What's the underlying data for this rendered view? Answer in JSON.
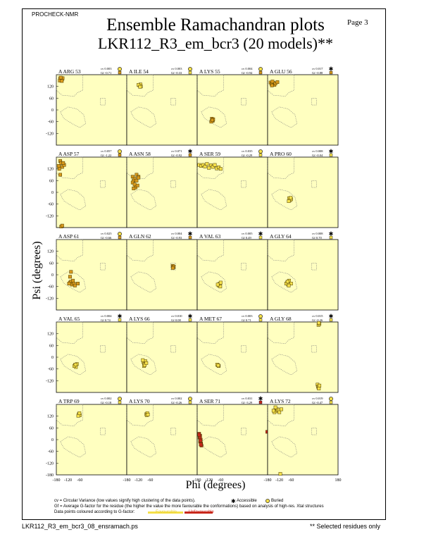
{
  "header": {
    "program": "PROCHECK-NMR",
    "page": "Page  3"
  },
  "title": {
    "line1": "Ensemble Ramachandran plots",
    "line2": "LKR112_R3_em_bcr3 (20 models)**"
  },
  "axes": {
    "xlabel": "Phi (degrees)",
    "ylabel": "Psi (degrees)",
    "yticks": [
      "120",
      "60",
      "0",
      "-60",
      "-120"
    ],
    "xticks": [
      "-180",
      "-120",
      "-60",
      "0",
      "60",
      "120",
      "180"
    ],
    "corner_ytick": "-180"
  },
  "legend": {
    "cv_text": "cv = Circular Variance (low values signify high clustering of the data points).",
    "accessible": "Accessible",
    "buried": "Buried",
    "gf_text": "Gf = Average G-factor for the residue (the higher the value the more favourable the conformations) based on analysis of high-res. Xtal structures",
    "colour_text": "Data points coloured according to G-factor:",
    "favourable": "Favourable",
    "unfavourable": "Unfavourable"
  },
  "footer": {
    "left": "LKR112_R3_em_bcr3_08_ensramach.ps",
    "right": "** Selected residues only"
  },
  "colors": {
    "panel_bg": "#ffffc0",
    "favourable": "#f5e04a",
    "mid": "#d89a1c",
    "unfavourable": "#c8281c",
    "outline": "#8a6a10",
    "region": "#7a7a7a"
  },
  "chart_data": {
    "type": "scatter",
    "xlim": [
      -180,
      180
    ],
    "ylim": [
      -180,
      180
    ],
    "panels": [
      {
        "label": "A ARG 53",
        "cv": "cv 0.003",
        "gf": "Gf -0.71",
        "access": "buried",
        "gfcolor": "mid",
        "points": [
          [
            -160,
            160
          ],
          [
            -155,
            155
          ],
          [
            -150,
            158
          ],
          [
            -162,
            150
          ],
          [
            -148,
            162
          ],
          [
            -158,
            165
          ],
          [
            -152,
            148
          ]
        ]
      },
      {
        "label": "A ILE 54",
        "cv": "cv 0.003",
        "gf": "Gf -0.33",
        "access": "buried",
        "gfcolor": "fav",
        "points": [
          [
            -115,
            125
          ],
          [
            -110,
            130
          ],
          [
            -108,
            120
          ],
          [
            -120,
            128
          ],
          [
            -112,
            118
          ]
        ]
      },
      {
        "label": "A LYS 55",
        "cv": "cv 0.004",
        "gf": "Gf -0.94",
        "access": "buried",
        "gfcolor": "mid",
        "points": [
          [
            -105,
            -45
          ],
          [
            -100,
            -55
          ],
          [
            -108,
            -60
          ],
          [
            -98,
            -48
          ],
          [
            -103,
            -52
          ]
        ]
      },
      {
        "label": "A GLU 56",
        "cv": "cv 0.017",
        "gf": "Gf -0.88",
        "access": "accessible",
        "gfcolor": "mid",
        "points": [
          [
            -165,
            140
          ],
          [
            -160,
            132
          ],
          [
            -150,
            138
          ],
          [
            -145,
            128
          ],
          [
            -155,
            145
          ],
          [
            -140,
            135
          ],
          [
            -130,
            142
          ],
          [
            -158,
            125
          ]
        ]
      },
      {
        "label": "A ASP 57",
        "cv": "cv 0.057",
        "gf": "Gf -1.22",
        "access": "buried",
        "gfcolor": "mid",
        "points": [
          [
            -160,
            160
          ],
          [
            -155,
            150
          ],
          [
            -168,
            135
          ],
          [
            -150,
            130
          ],
          [
            -165,
            120
          ],
          [
            -160,
            90
          ],
          [
            -140,
            140
          ],
          [
            -145,
            150
          ],
          [
            -155,
            -175
          ],
          [
            -150,
            -170
          ]
        ]
      },
      {
        "label": "A ASN 58",
        "cv": "cv 0.071",
        "gf": "Gf -0.92",
        "access": "accessible",
        "gfcolor": "mid",
        "points": [
          [
            -150,
            80
          ],
          [
            -140,
            70
          ],
          [
            -145,
            60
          ],
          [
            -130,
            90
          ],
          [
            -120,
            80
          ],
          [
            -150,
            50
          ],
          [
            -140,
            40
          ],
          [
            -135,
            25
          ],
          [
            -125,
            35
          ],
          [
            -145,
            20
          ],
          [
            -130,
            60
          ],
          [
            -120,
            75
          ]
        ]
      },
      {
        "label": "A SER 59",
        "cv": "cv 0.035",
        "gf": "Gf -0.29",
        "access": "buried",
        "gfcolor": "fav",
        "points": [
          [
            -170,
            140
          ],
          [
            -160,
            135
          ],
          [
            -150,
            140
          ],
          [
            -140,
            132
          ],
          [
            -130,
            145
          ],
          [
            -110,
            138
          ],
          [
            -100,
            130
          ],
          [
            -90,
            140
          ],
          [
            -80,
            122
          ],
          [
            -70,
            128
          ],
          [
            -60,
            120
          ],
          [
            -120,
            125
          ]
        ]
      },
      {
        "label": "A PRO 60",
        "cv": "cv 0.008",
        "gf": "Gf -0.04",
        "access": "accessible",
        "gfcolor": "fav",
        "points": [
          [
            -70,
            -30
          ],
          [
            -65,
            -40
          ],
          [
            -60,
            -35
          ],
          [
            -72,
            -45
          ],
          [
            -62,
            -28
          ]
        ]
      },
      {
        "label": "A ASP 61",
        "cv": "cv 0.025",
        "gf": "Gf -0.66",
        "access": "buried",
        "gfcolor": "mid",
        "points": [
          [
            -110,
            -40
          ],
          [
            -100,
            -50
          ],
          [
            -105,
            -35
          ],
          [
            -90,
            -45
          ],
          [
            -95,
            -30
          ],
          [
            -115,
            -45
          ],
          [
            -110,
            -10
          ],
          [
            -105,
            15
          ],
          [
            -70,
            -45
          ],
          [
            -85,
            -55
          ]
        ]
      },
      {
        "label": "A GLN 62",
        "cv": "cv 0.004",
        "gf": "Gf -0.93",
        "access": "accessible",
        "gfcolor": "mid",
        "points": [
          [
            55,
            45
          ],
          [
            58,
            38
          ],
          [
            60,
            42
          ],
          [
            56,
            35
          ]
        ]
      },
      {
        "label": "A VAL 63",
        "cv": "cv 0.005",
        "gf": "Gf 0.49",
        "access": "accessible",
        "gfcolor": "fav",
        "points": [
          [
            -70,
            -55
          ],
          [
            -65,
            -45
          ],
          [
            -62,
            -60
          ],
          [
            -75,
            -50
          ],
          [
            -60,
            -40
          ]
        ]
      },
      {
        "label": "A GLY 64",
        "cv": "cv 0.008",
        "gf": "Gf 0.70",
        "access": "accessible",
        "gfcolor": "fav",
        "points": [
          [
            -80,
            -40
          ],
          [
            -75,
            -50
          ],
          [
            -85,
            -45
          ],
          [
            -70,
            -30
          ],
          [
            -78,
            -35
          ],
          [
            -60,
            -45
          ],
          [
            -72,
            -55
          ]
        ]
      },
      {
        "label": "A VAL 65",
        "cv": "cv 0.004",
        "gf": "Gf 0.74",
        "access": "accessible",
        "gfcolor": "fav",
        "points": [
          [
            -85,
            -40
          ],
          [
            -80,
            -50
          ],
          [
            -88,
            -45
          ],
          [
            -75,
            -35
          ],
          [
            -82,
            -38
          ]
        ]
      },
      {
        "label": "A LYS 66",
        "cv": "cv 0.010",
        "gf": "Gf 0.08",
        "access": "accessible",
        "gfcolor": "fav",
        "points": [
          [
            -95,
            -25
          ],
          [
            -90,
            -35
          ],
          [
            -85,
            -20
          ],
          [
            -92,
            -45
          ],
          [
            -88,
            -40
          ],
          [
            -80,
            -30
          ],
          [
            -98,
            -15
          ]
        ]
      },
      {
        "label": "A MET 67",
        "cv": "cv 0.003",
        "gf": "Gf 0.71",
        "access": "buried",
        "gfcolor": "fav",
        "points": [
          [
            -75,
            -40
          ],
          [
            -70,
            -45
          ],
          [
            -78,
            -38
          ],
          [
            -72,
            -42
          ]
        ]
      },
      {
        "label": "A GLY 68",
        "cv": "cv 0.015",
        "gf": "Gf -0.26",
        "access": "accessible",
        "gfcolor": "fav",
        "points": [
          [
            80,
            165
          ],
          [
            85,
            170
          ],
          [
            82,
            175
          ],
          [
            75,
            -140
          ],
          [
            78,
            -150
          ],
          [
            80,
            -155
          ],
          [
            85,
            -145
          ],
          [
            82,
            -160
          ]
        ]
      },
      {
        "label": "A TRP 69",
        "cv": "cv 0.002",
        "gf": "Gf -0.18",
        "access": "buried",
        "gfcolor": "fav",
        "points": [
          [
            -65,
            130
          ],
          [
            -60,
            125
          ],
          [
            -68,
            122
          ],
          [
            -62,
            135
          ]
        ]
      },
      {
        "label": "A LYS 70",
        "cv": "cv 0.002",
        "gf": "Gf -0.26",
        "access": "buried",
        "gfcolor": "fav",
        "points": [
          [
            -80,
            130
          ],
          [
            -75,
            135
          ],
          [
            -78,
            125
          ],
          [
            -72,
            128
          ]
        ]
      },
      {
        "label": "A SER 71",
        "cv": "cv 0.031",
        "gf": "Gf -3.29",
        "access": "accessible",
        "gfcolor": "unfav",
        "points": [
          [
            -170,
            30
          ],
          [
            -165,
            20
          ],
          [
            -168,
            10
          ],
          [
            -162,
            0
          ],
          [
            -165,
            -10
          ],
          [
            -160,
            -20
          ],
          [
            -158,
            -30
          ],
          [
            -163,
            -5
          ],
          [
            -166,
            15
          ],
          [
            -170,
            25
          ],
          [
            -162,
            -25
          ],
          [
            178,
            40
          ]
        ]
      },
      {
        "label": "A LYS 72",
        "cv": "cv 0.019",
        "gf": "Gf -0.47",
        "access": "buried",
        "gfcolor": "fav",
        "points": [
          [
            -140,
            150
          ],
          [
            -135,
            145
          ],
          [
            -130,
            155
          ],
          [
            -145,
            140
          ],
          [
            -125,
            150
          ],
          [
            -150,
            148
          ],
          [
            -120,
            140
          ],
          [
            -110,
            155
          ],
          [
            -140,
            165
          ],
          [
            -115,
            -175
          ]
        ]
      }
    ]
  }
}
